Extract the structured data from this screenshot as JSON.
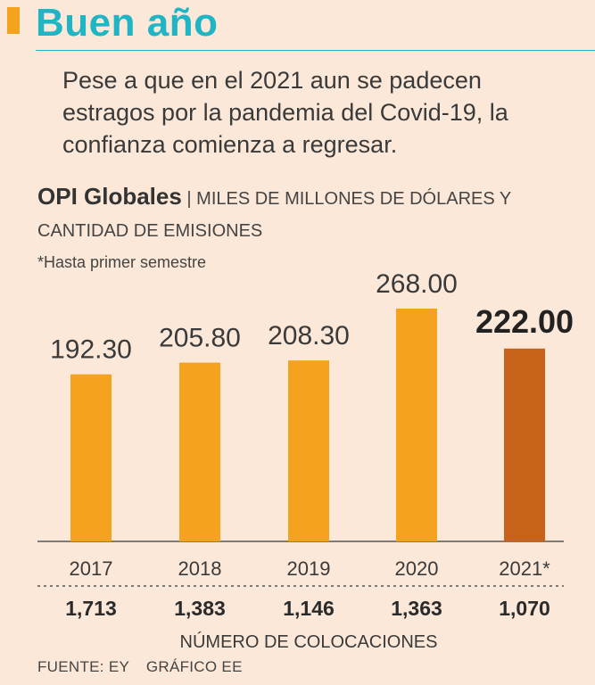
{
  "header": {
    "title": "Buen año",
    "subtitle": "Pese a que en el 2021 aun se padecen estragos por la pandemia del Covid-19, la confianza comienza a regresar."
  },
  "chart_header": {
    "bold": "OPI Globales",
    "separator": "|",
    "units": "MILES DE MILLONES DE DÓLARES Y CANTIDAD DE EMISIONES"
  },
  "note": "*Hasta primer semestre",
  "chart_data": {
    "type": "bar",
    "title": "OPI Globales",
    "ylabel": "Miles de millones de dólares",
    "categories": [
      "2017",
      "2018",
      "2019",
      "2020",
      "2021*"
    ],
    "values": [
      192.3,
      205.8,
      208.3,
      268.0,
      222.0
    ],
    "value_labels": [
      "192.30",
      "205.80",
      "208.30",
      "268.00",
      "222.00"
    ],
    "highlight_index": 4,
    "ylim": [
      0,
      268
    ],
    "colors": {
      "bar": "#f5a21e",
      "highlight": "#c8621a"
    },
    "secondary_series": {
      "name": "NÚMERO DE COLOCACIONES",
      "values": [
        "1,713",
        "1,383",
        "1,146",
        "1,363",
        "1,070"
      ]
    }
  },
  "source": {
    "fuente": "FUENTE: EY",
    "grafico": "GRÁFICO EE"
  }
}
